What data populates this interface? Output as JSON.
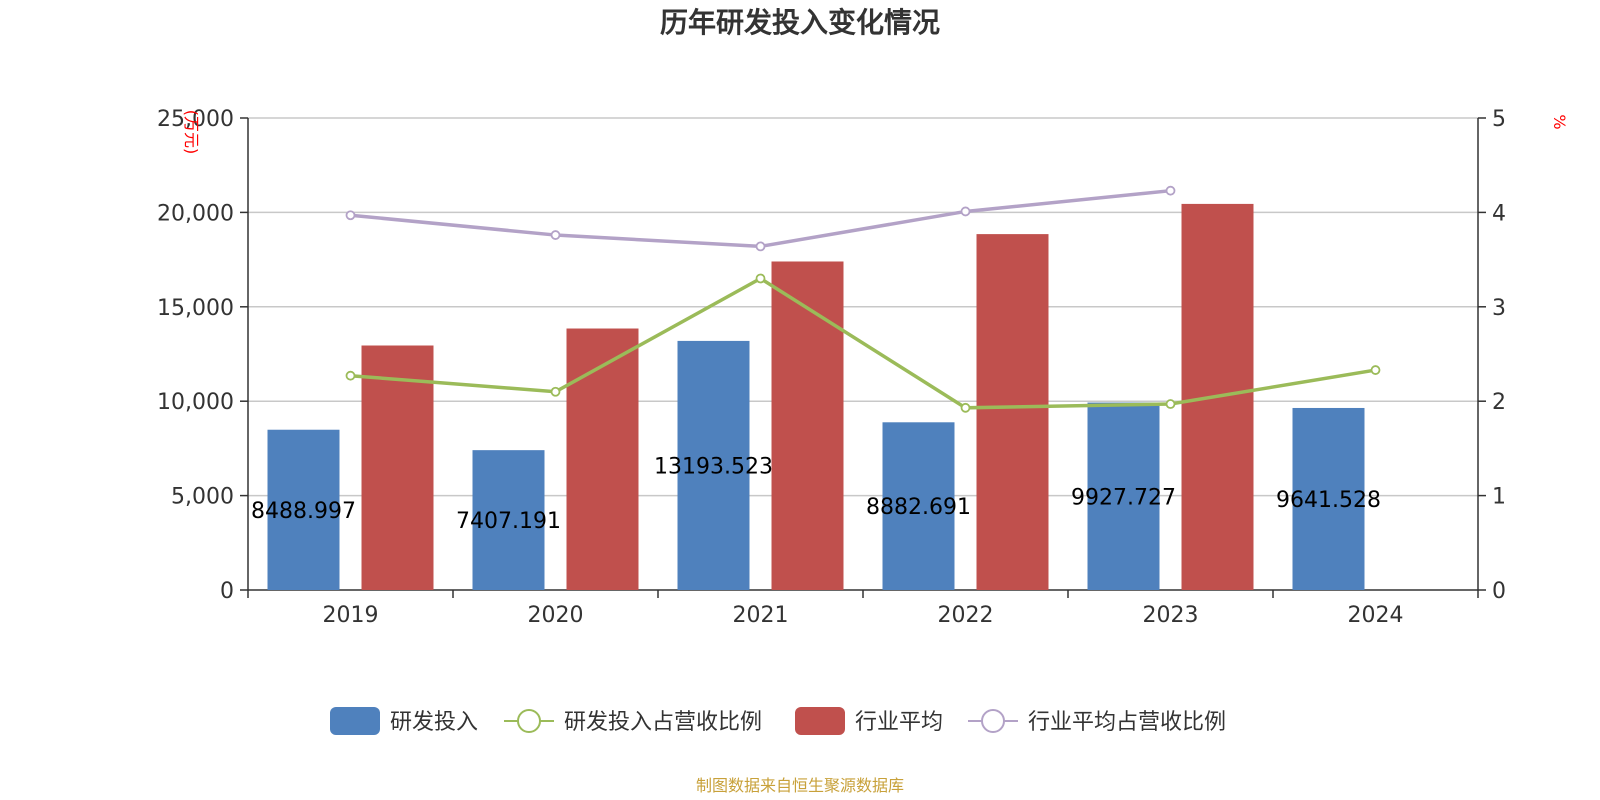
{
  "chart_data": {
    "type": "bar",
    "title": "历年研发投入变化情况",
    "categories": [
      "2019",
      "2020",
      "2021",
      "2022",
      "2023",
      "2024"
    ],
    "left_axis": {
      "unit": "(万元)",
      "min": 0,
      "max": 25000,
      "ticks": [
        "0",
        "5,000",
        "10,000",
        "15,000",
        "20,000",
        "25,000"
      ]
    },
    "right_axis": {
      "unit": "%",
      "min": 0,
      "max": 5,
      "ticks": [
        "0",
        "1",
        "2",
        "3",
        "4",
        "5"
      ]
    },
    "series": [
      {
        "name": "研发投入",
        "kind": "bar",
        "axis": "left",
        "color": "#4f81bd",
        "values": [
          8488.997,
          7407.191,
          13193.523,
          8882.691,
          9927.727,
          9641.528
        ],
        "labels": [
          "8488.997",
          "7407.191",
          "13193.523",
          "8882.691",
          "9927.727",
          "9641.528"
        ]
      },
      {
        "name": "研发投入占营收比例",
        "kind": "line",
        "axis": "right",
        "color": "#9bbb59",
        "values": [
          2.27,
          2.1,
          3.3,
          1.93,
          1.97,
          2.33
        ]
      },
      {
        "name": "行业平均",
        "kind": "bar",
        "axis": "left",
        "color": "#c0504d",
        "values": [
          12950,
          13850,
          17400,
          18850,
          20450,
          null
        ]
      },
      {
        "name": "行业平均占营收比例",
        "kind": "line",
        "axis": "right",
        "color": "#b3a2c7",
        "values": [
          3.97,
          3.76,
          3.64,
          4.01,
          4.23,
          null
        ]
      }
    ],
    "grid": true,
    "legend_position": "bottom"
  },
  "source": "制图数据来自恒生聚源数据库"
}
